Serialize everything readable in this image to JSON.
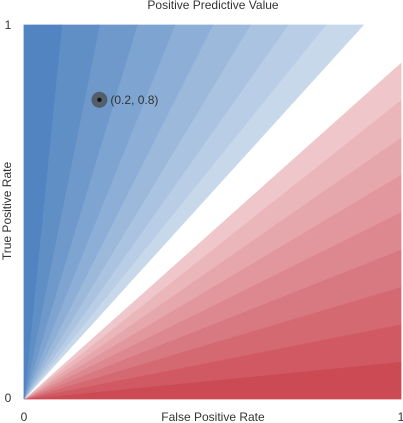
{
  "chart_data": {
    "type": "area",
    "title": "Positive Predictive Value",
    "xlabel": "False Positive Rate",
    "ylabel": "True Positive Rate",
    "xlim": [
      0,
      1
    ],
    "ylim": [
      0,
      1
    ],
    "x_ticks": [
      "0",
      "1"
    ],
    "y_ticks": [
      "0",
      "1"
    ],
    "contour_bands": 20,
    "neutral_range": [
      0.45,
      0.55
    ],
    "colors": {
      "high": "#4a7fbe",
      "low": "#c9424d",
      "mid": "#ffffff"
    },
    "point": {
      "x": 0.2,
      "y": 0.8,
      "label": "(0.2, 0.8)"
    },
    "grid": false,
    "legend": "none"
  }
}
